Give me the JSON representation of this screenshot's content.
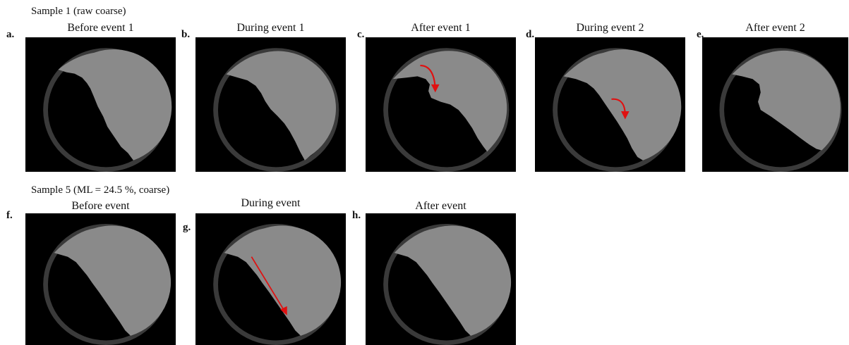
{
  "samples": [
    {
      "title": "Sample 1 (raw coarse)",
      "panels": [
        {
          "label": "a.",
          "title": "Before event 1"
        },
        {
          "label": "b.",
          "title": "During event 1"
        },
        {
          "label": "c.",
          "title": "After event 1"
        },
        {
          "label": "d.",
          "title": "During event 2"
        },
        {
          "label": "e.",
          "title": "After event 2"
        }
      ]
    },
    {
      "title": "Sample 5 (ML = 24.5 %, coarse)",
      "panels": [
        {
          "label": "f.",
          "title": "Before event"
        },
        {
          "label": "g.",
          "title": "During event"
        },
        {
          "label": "h.",
          "title": "After event"
        }
      ]
    }
  ],
  "colors": {
    "frame_background": "#000000",
    "drum_ring": "#3a3a3a",
    "granular_material": "#8a8a8a",
    "arrow": "#e01010"
  }
}
